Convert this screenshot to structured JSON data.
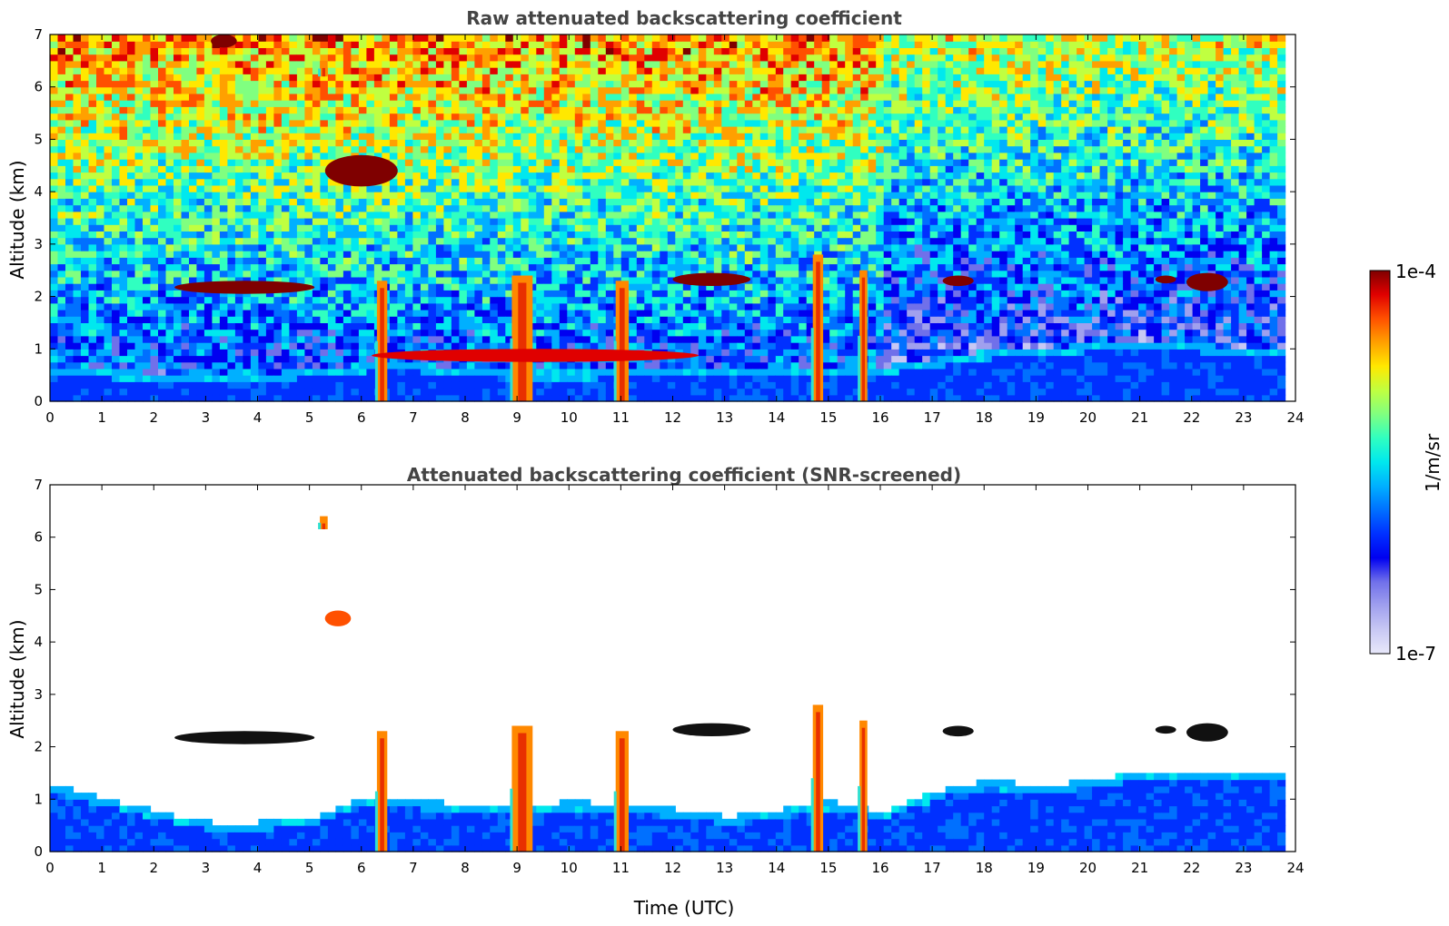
{
  "chart_data": [
    {
      "type": "heatmap",
      "title": "Raw attenuated backscattering coefficient",
      "xlabel": "",
      "ylabel": "Altitude (km)",
      "xlim": [
        0,
        24
      ],
      "ylim": [
        0,
        7
      ],
      "xticks": [
        "0",
        "1",
        "2",
        "3",
        "4",
        "5",
        "6",
        "7",
        "8",
        "9",
        "10",
        "11",
        "12",
        "13",
        "14",
        "15",
        "16",
        "17",
        "18",
        "19",
        "20",
        "21",
        "22",
        "23",
        "24"
      ],
      "yticks": [
        "0",
        "1",
        "2",
        "3",
        "4",
        "5",
        "6",
        "7"
      ],
      "colormap": "jet",
      "clouds": [
        {
          "x": [
            2.4,
            5.1
          ],
          "y": [
            2.05,
            2.3
          ],
          "level": 1.0
        },
        {
          "x": [
            5.3,
            6.7
          ],
          "y": [
            4.1,
            4.7
          ],
          "level": 1.0
        },
        {
          "x": [
            5.2,
            5.35
          ],
          "y": [
            6.2,
            6.5
          ],
          "level": 1.0
        },
        {
          "x": [
            3.1,
            3.6
          ],
          "y": [
            6.75,
            7.0
          ],
          "level": 1.0
        },
        {
          "x": [
            6.3,
            6.5
          ],
          "y": [
            0.0,
            2.3
          ],
          "level": 0.9
        },
        {
          "x": [
            8.9,
            9.3
          ],
          "y": [
            0.0,
            2.4
          ],
          "level": 0.9
        },
        {
          "x": [
            10.9,
            11.15
          ],
          "y": [
            0.0,
            2.3
          ],
          "level": 0.9
        },
        {
          "x": [
            14.7,
            14.9
          ],
          "y": [
            0.0,
            2.8
          ],
          "level": 0.9
        },
        {
          "x": [
            15.6,
            15.75
          ],
          "y": [
            0.0,
            2.5
          ],
          "level": 0.9
        },
        {
          "x": [
            6.2,
            12.5
          ],
          "y": [
            0.75,
            1.0
          ],
          "level": 0.95
        },
        {
          "x": [
            12.0,
            13.5
          ],
          "y": [
            2.2,
            2.45
          ],
          "level": 1.0
        },
        {
          "x": [
            17.2,
            17.8
          ],
          "y": [
            2.2,
            2.4
          ],
          "level": 1.0
        },
        {
          "x": [
            21.3,
            21.7
          ],
          "y": [
            2.25,
            2.4
          ],
          "level": 1.0
        },
        {
          "x": [
            21.9,
            22.7
          ],
          "y": [
            2.1,
            2.45
          ],
          "level": 1.0
        }
      ],
      "boundary_layer_top_km": [
        {
          "t": 0,
          "z": 0.6
        },
        {
          "t": 3,
          "z": 0.4
        },
        {
          "t": 5,
          "z": 0.55
        },
        {
          "t": 6.5,
          "z": 0.7
        },
        {
          "t": 9,
          "z": 0.5
        },
        {
          "t": 12,
          "z": 0.55
        },
        {
          "t": 16,
          "z": 0.6
        },
        {
          "t": 18,
          "z": 0.9
        },
        {
          "t": 21,
          "z": 1.1
        },
        {
          "t": 23.8,
          "z": 0.9
        }
      ]
    },
    {
      "type": "heatmap",
      "title": "Attenuated backscattering coefficient (SNR-screened)",
      "xlabel": "Time (UTC)",
      "ylabel": "Altitude (km)",
      "xlim": [
        0,
        24
      ],
      "ylim": [
        0,
        7
      ],
      "xticks": [
        "0",
        "1",
        "2",
        "3",
        "4",
        "5",
        "6",
        "7",
        "8",
        "9",
        "10",
        "11",
        "12",
        "13",
        "14",
        "15",
        "16",
        "17",
        "18",
        "19",
        "20",
        "21",
        "22",
        "23",
        "24"
      ],
      "yticks": [
        "0",
        "1",
        "2",
        "3",
        "4",
        "5",
        "6",
        "7"
      ],
      "colormap": "jet",
      "clouds": [
        {
          "x": [
            2.4,
            5.1
          ],
          "y": [
            2.05,
            2.3
          ],
          "level": 1.1
        },
        {
          "x": [
            5.3,
            5.8
          ],
          "y": [
            4.3,
            4.6
          ],
          "level": 0.85
        },
        {
          "x": [
            5.2,
            5.35
          ],
          "y": [
            6.15,
            6.4
          ],
          "level": 0.9
        },
        {
          "x": [
            6.3,
            6.5
          ],
          "y": [
            0.0,
            2.3
          ],
          "level": 0.9
        },
        {
          "x": [
            8.9,
            9.3
          ],
          "y": [
            0.0,
            2.4
          ],
          "level": 0.9
        },
        {
          "x": [
            10.9,
            11.15
          ],
          "y": [
            0.0,
            2.3
          ],
          "level": 0.9
        },
        {
          "x": [
            14.7,
            14.9
          ],
          "y": [
            0.0,
            2.8
          ],
          "level": 0.9
        },
        {
          "x": [
            15.6,
            15.75
          ],
          "y": [
            0.0,
            2.5
          ],
          "level": 0.9
        },
        {
          "x": [
            12.0,
            13.5
          ],
          "y": [
            2.2,
            2.45
          ],
          "level": 1.1
        },
        {
          "x": [
            17.2,
            17.8
          ],
          "y": [
            2.2,
            2.4
          ],
          "level": 1.1
        },
        {
          "x": [
            21.3,
            21.7
          ],
          "y": [
            2.25,
            2.4
          ],
          "level": 1.1
        },
        {
          "x": [
            21.9,
            22.7
          ],
          "y": [
            2.1,
            2.45
          ],
          "level": 1.1
        }
      ],
      "signal_top_km": [
        {
          "t": 0,
          "z": 1.2
        },
        {
          "t": 1.2,
          "z": 0.9
        },
        {
          "t": 2,
          "z": 0.7
        },
        {
          "t": 3,
          "z": 0.5
        },
        {
          "t": 4,
          "z": 0.5
        },
        {
          "t": 5,
          "z": 0.6
        },
        {
          "t": 6,
          "z": 1.0
        },
        {
          "t": 7,
          "z": 0.9
        },
        {
          "t": 9,
          "z": 0.8
        },
        {
          "t": 10,
          "z": 0.9
        },
        {
          "t": 12,
          "z": 0.75
        },
        {
          "t": 13,
          "z": 0.6
        },
        {
          "t": 15,
          "z": 0.9
        },
        {
          "t": 16,
          "z": 0.7
        },
        {
          "t": 17,
          "z": 1.1
        },
        {
          "t": 18,
          "z": 1.3
        },
        {
          "t": 19,
          "z": 1.2
        },
        {
          "t": 20,
          "z": 1.3
        },
        {
          "t": 21,
          "z": 1.45
        },
        {
          "t": 22,
          "z": 1.5
        },
        {
          "t": 23,
          "z": 1.45
        },
        {
          "t": 23.8,
          "z": 1.4
        }
      ]
    }
  ],
  "colorbar": {
    "max_label": "1e-4",
    "min_label": "1e-7",
    "unit_label": "1/m/sr",
    "colors": [
      "#e8e8fa",
      "#c8c8f4",
      "#a0a0ee",
      "#7070ea",
      "#0000f0",
      "#0030ff",
      "#0070ff",
      "#00b0ff",
      "#00e8ee",
      "#30ffc0",
      "#80ff80",
      "#c0ff40",
      "#ffe800",
      "#ffa000",
      "#ff5000",
      "#e00000",
      "#7f0000"
    ]
  }
}
